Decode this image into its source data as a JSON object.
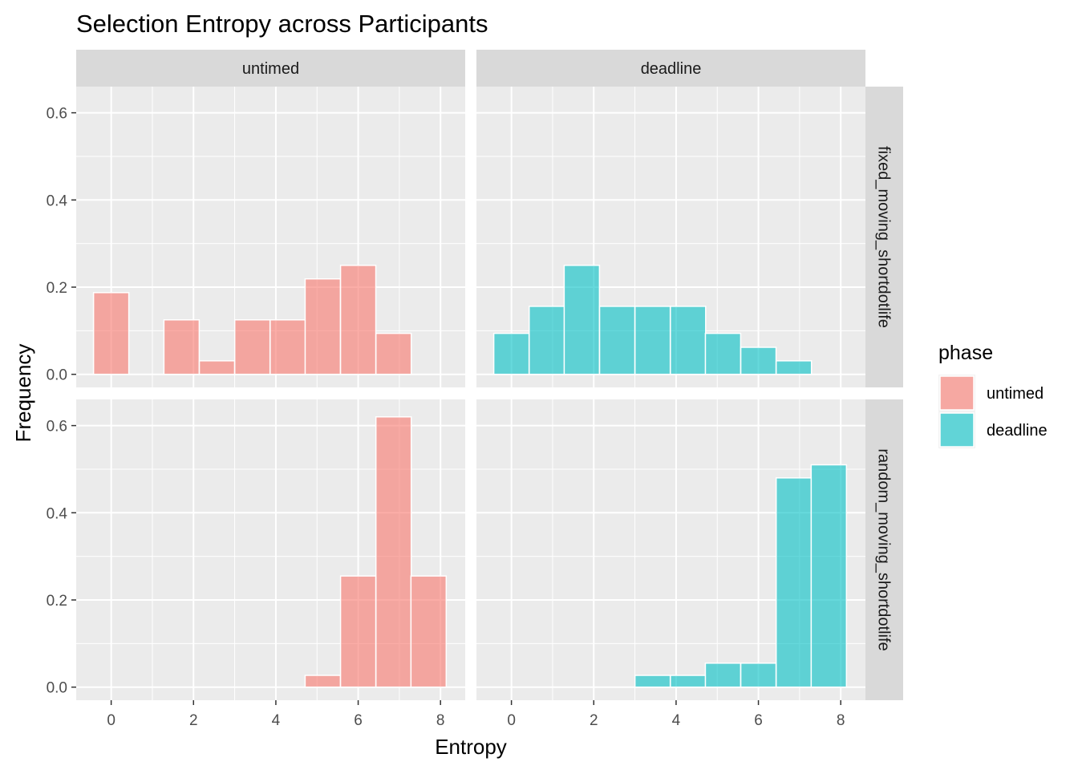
{
  "chart_data": {
    "type": "bar",
    "title": "Selection Entropy across Participants",
    "xlabel": "Entropy",
    "ylabel": "Frequency",
    "xlim": [
      -0.85,
      8.6
    ],
    "ylim": [
      -0.03,
      0.66
    ],
    "x_ticks": [
      0,
      2,
      4,
      6,
      8
    ],
    "y_ticks": [
      0.0,
      0.2,
      0.4,
      0.6
    ],
    "y_tick_labels": [
      "0.0",
      "0.2",
      "0.4",
      "0.6"
    ],
    "grid": true,
    "bin_width": 0.857,
    "col_facets": [
      "untimed",
      "deadline"
    ],
    "row_facets": [
      "fixed_moving_shortdotlife",
      "random_moving_shortdotlife"
    ],
    "legend": {
      "title": "phase",
      "position": "right",
      "entries": [
        {
          "label": "untimed",
          "color": "#F8766D"
        },
        {
          "label": "deadline",
          "color": "#00BFC4"
        }
      ]
    },
    "series": [
      {
        "phase": "untimed",
        "color": "#F8766D",
        "panel_row": "fixed_moving_shortdotlife",
        "bins": [
          {
            "x": 0.0,
            "y": 0.1875
          },
          {
            "x": 1.71,
            "y": 0.125
          },
          {
            "x": 2.57,
            "y": 0.031
          },
          {
            "x": 3.43,
            "y": 0.125
          },
          {
            "x": 4.29,
            "y": 0.125
          },
          {
            "x": 5.14,
            "y": 0.219
          },
          {
            "x": 6.0,
            "y": 0.25
          },
          {
            "x": 6.86,
            "y": 0.094
          }
        ]
      },
      {
        "phase": "deadline",
        "color": "#00BFC4",
        "panel_row": "fixed_moving_shortdotlife",
        "bins": [
          {
            "x": 0.0,
            "y": 0.094
          },
          {
            "x": 0.86,
            "y": 0.156
          },
          {
            "x": 1.71,
            "y": 0.25
          },
          {
            "x": 2.57,
            "y": 0.156
          },
          {
            "x": 3.43,
            "y": 0.156
          },
          {
            "x": 4.29,
            "y": 0.156
          },
          {
            "x": 5.14,
            "y": 0.094
          },
          {
            "x": 6.0,
            "y": 0.062
          },
          {
            "x": 6.86,
            "y": 0.031
          }
        ]
      },
      {
        "phase": "untimed",
        "color": "#F8766D",
        "panel_row": "random_moving_shortdotlife",
        "bins": [
          {
            "x": 5.14,
            "y": 0.027
          },
          {
            "x": 6.0,
            "y": 0.255
          },
          {
            "x": 6.86,
            "y": 0.62
          },
          {
            "x": 7.71,
            "y": 0.255
          }
        ]
      },
      {
        "phase": "deadline",
        "color": "#00BFC4",
        "panel_row": "random_moving_shortdotlife",
        "bins": [
          {
            "x": 3.43,
            "y": 0.027
          },
          {
            "x": 4.29,
            "y": 0.027
          },
          {
            "x": 5.14,
            "y": 0.055
          },
          {
            "x": 6.0,
            "y": 0.055
          },
          {
            "x": 6.86,
            "y": 0.48
          },
          {
            "x": 7.71,
            "y": 0.51
          }
        ]
      }
    ]
  }
}
